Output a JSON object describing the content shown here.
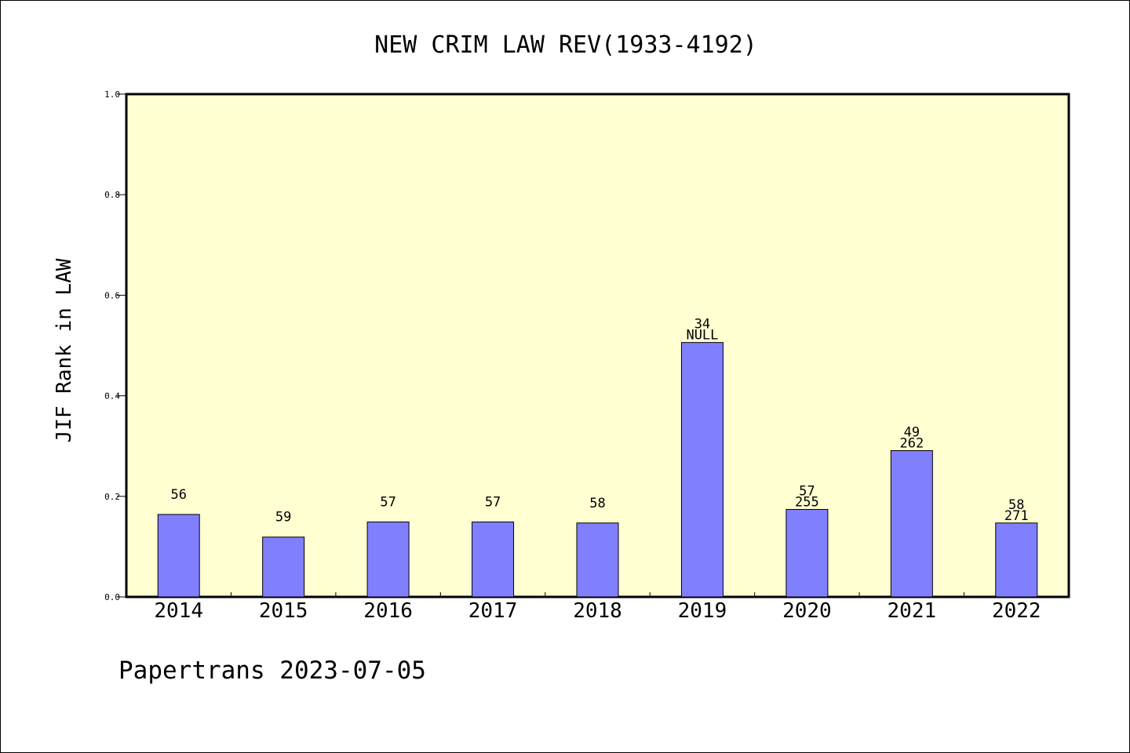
{
  "chart_data": {
    "type": "bar",
    "title": "NEW CRIM LAW REV(1933-4192)",
    "ylabel": "JIF Rank in LAW",
    "xlabel": "",
    "ylim": [
      0,
      1.0
    ],
    "yticks": [
      "0.0",
      "0.2",
      "0.4",
      "0.6",
      "0.8",
      "1.0"
    ],
    "grid": false,
    "categories": [
      "2014",
      "2015",
      "2016",
      "2017",
      "2018",
      "2019",
      "2020",
      "2021",
      "2022"
    ],
    "values": [
      0.164,
      0.119,
      0.149,
      0.149,
      0.147,
      0.506,
      0.174,
      0.291,
      0.147
    ],
    "labels_top": [
      "56",
      "59",
      "57",
      "57",
      "58",
      "34",
      "57",
      "49",
      "58"
    ],
    "labels_bottom": [
      "",
      "",
      "",
      "",
      "",
      "NULL",
      "255",
      "262",
      "271"
    ],
    "colors": {
      "bar_fill": "#8080ff",
      "plot_background": "#ffffd2"
    }
  },
  "footer": {
    "source": "Papertrans 2023-07-05"
  }
}
